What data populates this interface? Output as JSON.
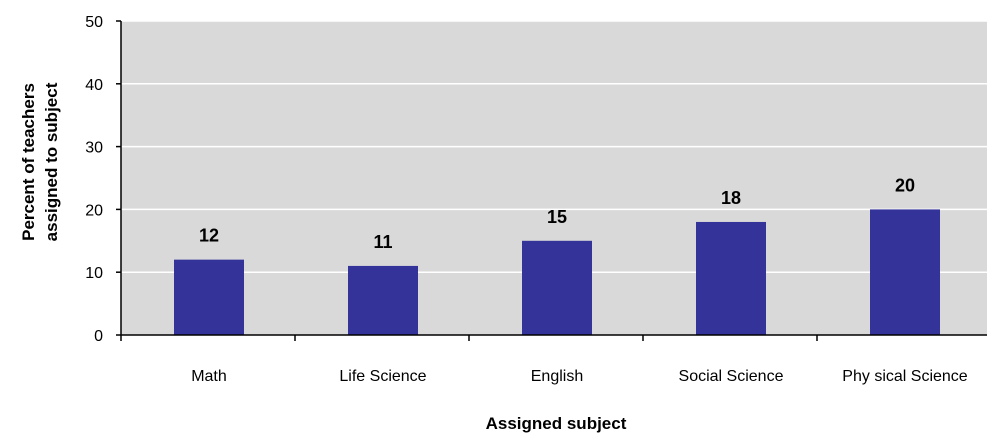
{
  "chart_data": {
    "type": "bar",
    "categories": [
      "Math",
      "Life Science",
      "English",
      "Social Science",
      "Phy sical Science"
    ],
    "values": [
      12,
      11,
      15,
      18,
      20
    ],
    "data_labels": [
      "12",
      "11",
      "15",
      "18",
      "20"
    ],
    "title": "",
    "xlabel": "Assigned subject",
    "ylabel_lines": [
      "Percent of teachers",
      "assigned to subject"
    ],
    "ylim": [
      0,
      50
    ],
    "yticks": [
      0,
      10,
      20,
      30,
      40,
      50
    ],
    "ytick_labels": [
      "0",
      "10",
      "20",
      "30",
      "40",
      "50"
    ],
    "grid": true,
    "legend": "none",
    "colors": {
      "bar": "#333399",
      "plot_background": "#d9d9d9",
      "gridline": "#ffffff",
      "axis": "#000000"
    }
  }
}
